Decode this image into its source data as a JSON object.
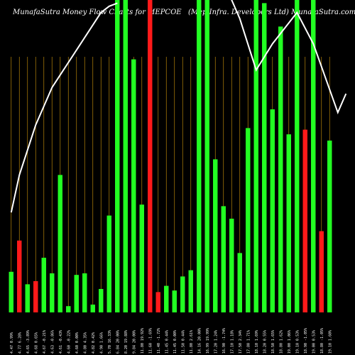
{
  "chart_data": {
    "type": "bar",
    "title_left": "MunafaSutra  Money Flow  Charts for MEPCOE",
    "title_right": "(Mep Infra. Developers Ltd) MunafaSutra.com",
    "bar_colors": {
      "up": "#22ff22",
      "down": "#ff1a1a"
    },
    "line_color": "#ffffff",
    "grid_color": "#b8860b",
    "background": "#000000",
    "ylim": [
      0,
      100
    ],
    "bars": [
      {
        "label": "4.47 0.99%",
        "value": 13,
        "dir": "up"
      },
      {
        "label": "4.77 6.28%",
        "value": 23,
        "dir": "down"
      },
      {
        "label": "4.65 -3.89%",
        "value": 9,
        "dir": "up"
      },
      {
        "label": "4.68 0.65%",
        "value": 10,
        "dir": "down"
      },
      {
        "label": "4.67 -0.21%",
        "value": 17.5,
        "dir": "up"
      },
      {
        "label": "4.63 -0.86%",
        "value": 12.5,
        "dir": "up"
      },
      {
        "label": "4.61 -0.43%",
        "value": 44,
        "dir": "up"
      },
      {
        "label": "4.60 -0.22%",
        "value": 2,
        "dir": "up"
      },
      {
        "label": "4.60 0.00%",
        "value": 12,
        "dir": "up"
      },
      {
        "label": "4.80 4.35%",
        "value": 12.5,
        "dir": "up"
      },
      {
        "label": "4.82 0.42%",
        "value": 2.5,
        "dir": "up"
      },
      {
        "label": "4.90 1.66%",
        "value": 7.5,
        "dir": "up"
      },
      {
        "label": "5.70 16.33%",
        "value": 31,
        "dir": "up"
      },
      {
        "label": "6.84 20.00%",
        "value": 100,
        "dir": "up"
      },
      {
        "label": "8.20 19.88%",
        "value": 100,
        "dir": "up"
      },
      {
        "label": "9.84 20.00%",
        "value": 81,
        "dir": "up"
      },
      {
        "label": "11.80 19.92%",
        "value": 34.5,
        "dir": "up"
      },
      {
        "label": "11.60 -1.69%",
        "value": 100,
        "dir": "down"
      },
      {
        "label": "11.40 -1.72%",
        "value": 6.5,
        "dir": "down"
      },
      {
        "label": "11.45 0.44%",
        "value": 8.5,
        "dir": "up"
      },
      {
        "label": "11.45 0.00%",
        "value": 7,
        "dir": "up"
      },
      {
        "label": "11.50 0.44%",
        "value": 11.5,
        "dir": "up"
      },
      {
        "label": "11.80 2.61%",
        "value": 13.5,
        "dir": "up"
      },
      {
        "label": "14.16 20.00%",
        "value": 100,
        "dir": "up"
      },
      {
        "label": "16.99 19.99%",
        "value": 100,
        "dir": "up"
      },
      {
        "label": "17.20 1.24%",
        "value": 49,
        "dir": "up"
      },
      {
        "label": "16.90 -1.74%",
        "value": 34,
        "dir": "up"
      },
      {
        "label": "17.10 1.18%",
        "value": 30,
        "dir": "up"
      },
      {
        "label": "17.50 2.34%",
        "value": 19,
        "dir": "up"
      },
      {
        "label": "17.80 1.71%",
        "value": 59,
        "dir": "up"
      },
      {
        "label": "18.10 1.69%",
        "value": 100,
        "dir": "up"
      },
      {
        "label": "18.20 0.55%",
        "value": 99,
        "dir": "up"
      },
      {
        "label": "18.50 1.65%",
        "value": 65,
        "dir": "up"
      },
      {
        "label": "18.80 1.62%",
        "value": 91.5,
        "dir": "up"
      },
      {
        "label": "19.00 1.06%",
        "value": 57,
        "dir": "up"
      },
      {
        "label": "19.10 0.53%",
        "value": 100,
        "dir": "up"
      },
      {
        "label": "18.90 -1.05%",
        "value": 58.5,
        "dir": "down"
      },
      {
        "label": "19.00 0.53%",
        "value": 100,
        "dir": "up"
      },
      {
        "label": "18.80 -1.05%",
        "value": 26,
        "dir": "down"
      },
      {
        "label": "19.10 1.60%",
        "value": 55,
        "dir": "up"
      }
    ],
    "line_points": [
      {
        "x": 0,
        "y": 160
      },
      {
        "x": 1,
        "y": 220
      },
      {
        "x": 2,
        "y": 260
      },
      {
        "x": 3,
        "y": 300
      },
      {
        "x": 4,
        "y": 330
      },
      {
        "x": 5,
        "y": 360
      },
      {
        "x": 6,
        "y": 380
      },
      {
        "x": 7,
        "y": 400
      },
      {
        "x": 8,
        "y": 420
      },
      {
        "x": 9,
        "y": 440
      },
      {
        "x": 10,
        "y": 460
      },
      {
        "x": 11,
        "y": 480
      },
      {
        "x": 12,
        "y": 490
      },
      {
        "x": 13,
        "y": 495
      },
      {
        "x": 25,
        "y": 560
      },
      {
        "x": 28,
        "y": 470
      },
      {
        "x": 30,
        "y": 388
      },
      {
        "x": 32,
        "y": 430
      },
      {
        "x": 35,
        "y": 480
      },
      {
        "x": 37,
        "y": 430
      },
      {
        "x": 40,
        "y": 320
      },
      {
        "x": 41,
        "y": 350
      }
    ],
    "line_ylim": [
      0,
      500
    ]
  }
}
